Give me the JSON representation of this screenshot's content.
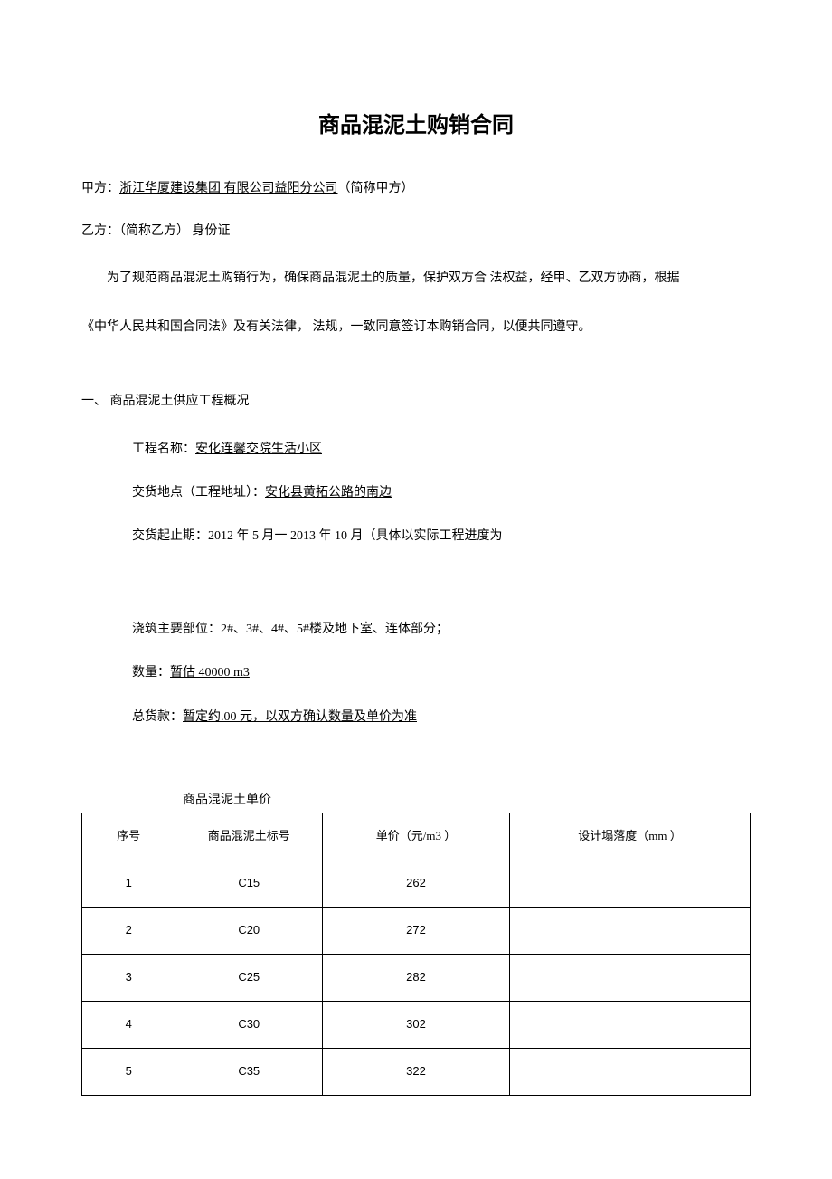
{
  "title": "商品混泥土购销合同",
  "partyA": {
    "label": "甲方：",
    "name": "浙江华厦建设集团 有限公司益阳分公司",
    "alias": "（简称甲方）"
  },
  "partyB": {
    "label": "乙方：（简称乙方） 身份证"
  },
  "intro1": "为了规范商品混泥土购销行为，确保商品混泥土的质量，保护双方合 法权益，经甲、乙双方协商，根据",
  "intro2": "《中华人民共和国合同法》及有关法律， 法规，一致同意签订本购销合同，以便共同遵守。",
  "section1": {
    "heading": "一、 商品混泥土供应工程概况",
    "projectNameLabel": "工程名称：",
    "projectName": "安化连馨交院生活小区",
    "deliveryLocationLabel": "交货地点（工程地址）：",
    "deliveryLocation": "安化县黄拓公路的南边",
    "deliveryPeriodLabel": "交货起止期：",
    "deliveryPeriod": "2012 年 5 月一 2013 年 10 月（具体以实际工程进度为",
    "pourPartsLabel": "浇筑主要部位：",
    "pourParts": "2#、3#、4#、5#楼及地下室、连体部分；",
    "quantityLabel": "数量：",
    "quantityValue": "暂估 40000 m3",
    "totalLabel": "总货款：",
    "totalValue": "暂定约.00 元，以双方确认数量及单价为准"
  },
  "tableCaption": "商品混泥土单价",
  "table": {
    "columns": [
      "序号",
      "商品混泥土标号",
      "单价（元/m3 ）",
      "设计塌落度（mm ）"
    ],
    "rows": [
      [
        "1",
        "C15",
        "262",
        ""
      ],
      [
        "2",
        "C20",
        "272",
        ""
      ],
      [
        "3",
        "C25",
        "282",
        ""
      ],
      [
        "4",
        "C30",
        "302",
        ""
      ],
      [
        "5",
        "C35",
        "322",
        ""
      ]
    ],
    "border_color": "#000000",
    "cell_fontsize": 13,
    "header_fontsize": 13,
    "column_widths_pct": [
      14,
      22,
      28,
      36
    ]
  },
  "colors": {
    "background": "#ffffff",
    "text": "#000000"
  }
}
